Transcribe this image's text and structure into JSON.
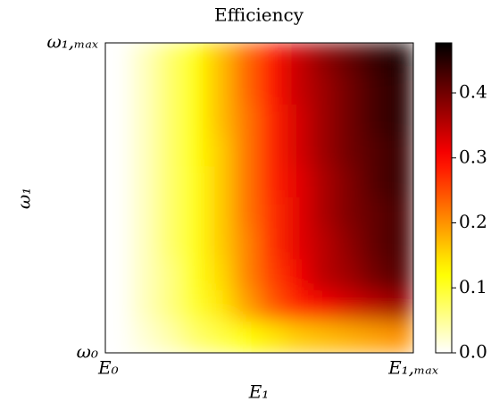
{
  "chart_data": {
    "type": "heatmap",
    "title": "Efficiency",
    "xlabel": "E₁",
    "ylabel": "ω₁",
    "xtick_labels": [
      "E₀",
      "E₁,ₘₐₓ"
    ],
    "ytick_labels": [
      "ω₀",
      "ω₁,ₘₐₓ"
    ],
    "z": [
      [
        0,
        0.03,
        0.07,
        0.12,
        0.17,
        0.23,
        0.29,
        0.34,
        0.38,
        0.41,
        0.44,
        0.46
      ],
      [
        0,
        0.03,
        0.07,
        0.12,
        0.17,
        0.23,
        0.29,
        0.34,
        0.37,
        0.4,
        0.43,
        0.45
      ],
      [
        0,
        0.03,
        0.07,
        0.12,
        0.17,
        0.22,
        0.28,
        0.33,
        0.37,
        0.4,
        0.43,
        0.45
      ],
      [
        0,
        0.03,
        0.07,
        0.12,
        0.16,
        0.22,
        0.28,
        0.33,
        0.37,
        0.4,
        0.42,
        0.44
      ],
      [
        0,
        0.03,
        0.07,
        0.11,
        0.16,
        0.22,
        0.28,
        0.32,
        0.36,
        0.39,
        0.42,
        0.44
      ],
      [
        0,
        0.03,
        0.07,
        0.11,
        0.16,
        0.22,
        0.27,
        0.32,
        0.36,
        0.39,
        0.41,
        0.43
      ],
      [
        0,
        0.03,
        0.07,
        0.11,
        0.16,
        0.21,
        0.27,
        0.32,
        0.35,
        0.38,
        0.41,
        0.43
      ],
      [
        0,
        0.03,
        0.06,
        0.11,
        0.15,
        0.21,
        0.26,
        0.31,
        0.35,
        0.37,
        0.4,
        0.42
      ],
      [
        0,
        0.03,
        0.06,
        0.1,
        0.14,
        0.19,
        0.24,
        0.28,
        0.31,
        0.33,
        0.35,
        0.37
      ],
      [
        0,
        0.02,
        0.04,
        0.07,
        0.09,
        0.12,
        0.14,
        0.16,
        0.17,
        0.18,
        0.19,
        0.2
      ]
    ],
    "colormap": "hot_r",
    "clim": [
      0,
      0.477
    ],
    "cticks": [
      {
        "value": 0,
        "label": "0.0"
      },
      0.1,
      0.2,
      0.3,
      0.4
    ]
  }
}
